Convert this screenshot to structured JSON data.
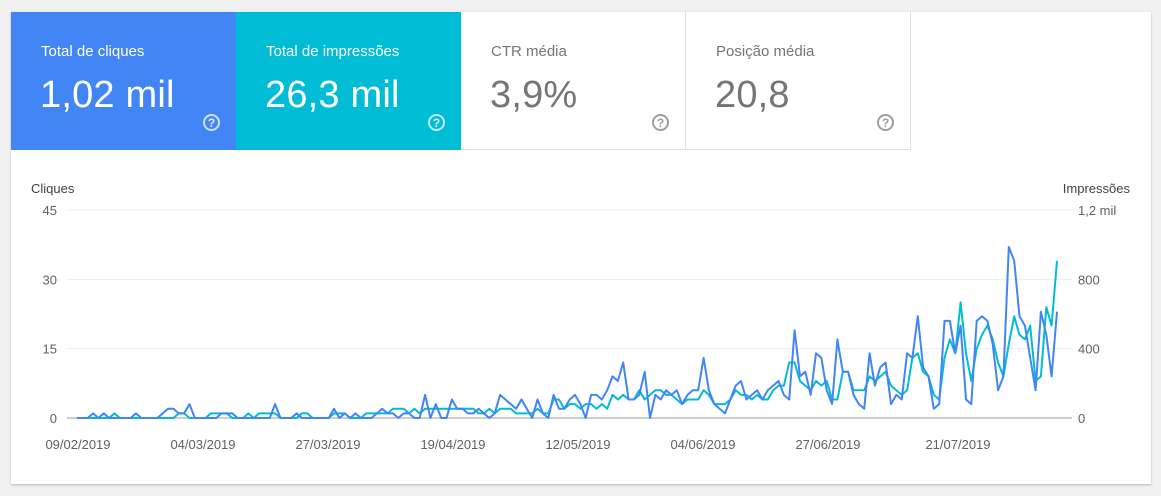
{
  "metrics": [
    {
      "label": "Total de cliques",
      "value": "1,02 mil",
      "state": "active",
      "color": "#4285f4"
    },
    {
      "label": "Total de impressões",
      "value": "26,3 mil",
      "state": "active",
      "color": "#00bcd4"
    },
    {
      "label": "CTR média",
      "value": "3,9%",
      "state": "inactive"
    },
    {
      "label": "Posição média",
      "value": "20,8",
      "state": "inactive"
    }
  ],
  "help_glyph": "?",
  "chart_data": {
    "type": "line",
    "left_axis_title": "Cliques",
    "right_axis_title": "Impressões",
    "left_ticks": [
      "45",
      "30",
      "15",
      "0"
    ],
    "left_ylim": [
      0,
      45
    ],
    "right_ticks": [
      "1,2 mil",
      "800",
      "400",
      "0"
    ],
    "right_ylim": [
      0,
      1200
    ],
    "x_tick_labels": [
      "09/02/2019",
      "04/03/2019",
      "27/03/2019",
      "19/04/2019",
      "12/05/2019",
      "04/06/2019",
      "27/06/2019",
      "21/07/2019"
    ],
    "grid": true,
    "series": [
      {
        "name": "Cliques",
        "axis": "left",
        "color": "#4285f4",
        "values": [
          0,
          0,
          0,
          1,
          0,
          1,
          0,
          0,
          0,
          0,
          0,
          1,
          0,
          0,
          0,
          0,
          1,
          2,
          2,
          1,
          1,
          3,
          0,
          0,
          0,
          0,
          0,
          1,
          1,
          1,
          0,
          0,
          0,
          0,
          0,
          0,
          0,
          3,
          0,
          0,
          0,
          1,
          0,
          0,
          0,
          0,
          0,
          0,
          2,
          0,
          1,
          0,
          1,
          0,
          0,
          0,
          1,
          2,
          1,
          1,
          0,
          1,
          1,
          0,
          0,
          5,
          0,
          3,
          0,
          0,
          4,
          2,
          2,
          1,
          1,
          2,
          1,
          0,
          1,
          5,
          4,
          3,
          2,
          4,
          2,
          0,
          4,
          1,
          0,
          5,
          2,
          2,
          4,
          5,
          3,
          0,
          5,
          5,
          4,
          6,
          9,
          8,
          12,
          4,
          4,
          5,
          10,
          0,
          5,
          4,
          6,
          5,
          6,
          3,
          5,
          6,
          6,
          13,
          6,
          3,
          2,
          1,
          4,
          7,
          8,
          4,
          5,
          6,
          4,
          6,
          7,
          8,
          5,
          4,
          19,
          9,
          10,
          5,
          14,
          13,
          6,
          3,
          17,
          10,
          10,
          5,
          3,
          2,
          14,
          7,
          11,
          12,
          3,
          5,
          4,
          14,
          13,
          22,
          11,
          9,
          2,
          3,
          21,
          21,
          14,
          20,
          4,
          3,
          21,
          22,
          21,
          16,
          6,
          9,
          37,
          34,
          22,
          20,
          13,
          6,
          23,
          18,
          9,
          23
        ]
      },
      {
        "name": "Impressões",
        "axis": "left",
        "color": "#00bcd4",
        "values": [
          0,
          0,
          0,
          0,
          0,
          0,
          0,
          1,
          0,
          0,
          0,
          0,
          0,
          0,
          0,
          0,
          0,
          0,
          0,
          1,
          1,
          0,
          0,
          0,
          0,
          1,
          1,
          1,
          1,
          0,
          0,
          0,
          1,
          0,
          1,
          1,
          1,
          1,
          0,
          0,
          0,
          0,
          1,
          1,
          0,
          0,
          0,
          0,
          1,
          1,
          1,
          0,
          0,
          0,
          1,
          1,
          1,
          1,
          1,
          2,
          2,
          2,
          1,
          2,
          1,
          2,
          2,
          2,
          2,
          2,
          2,
          2,
          2,
          2,
          2,
          1,
          1,
          2,
          1,
          2,
          2,
          2,
          1,
          1,
          1,
          1,
          2,
          1,
          1,
          4,
          4,
          2,
          3,
          3,
          2,
          3,
          3,
          2,
          3,
          2,
          5,
          4,
          5,
          4,
          4,
          6,
          4,
          5,
          6,
          6,
          5,
          5,
          4,
          3,
          4,
          4,
          4,
          6,
          5,
          3,
          3,
          3,
          4,
          6,
          5,
          5,
          4,
          5,
          4,
          4,
          6,
          7,
          7,
          12,
          12,
          8,
          7,
          6,
          8,
          7,
          8,
          4,
          4,
          10,
          10,
          6,
          6,
          6,
          9,
          8,
          9,
          10,
          7,
          6,
          5,
          6,
          13,
          14,
          10,
          9,
          5,
          4,
          13,
          17,
          14,
          25,
          14,
          8,
          15,
          18,
          20,
          17,
          12,
          9,
          16,
          22,
          18,
          17,
          20,
          8,
          9,
          24,
          20,
          34
        ]
      }
    ]
  }
}
